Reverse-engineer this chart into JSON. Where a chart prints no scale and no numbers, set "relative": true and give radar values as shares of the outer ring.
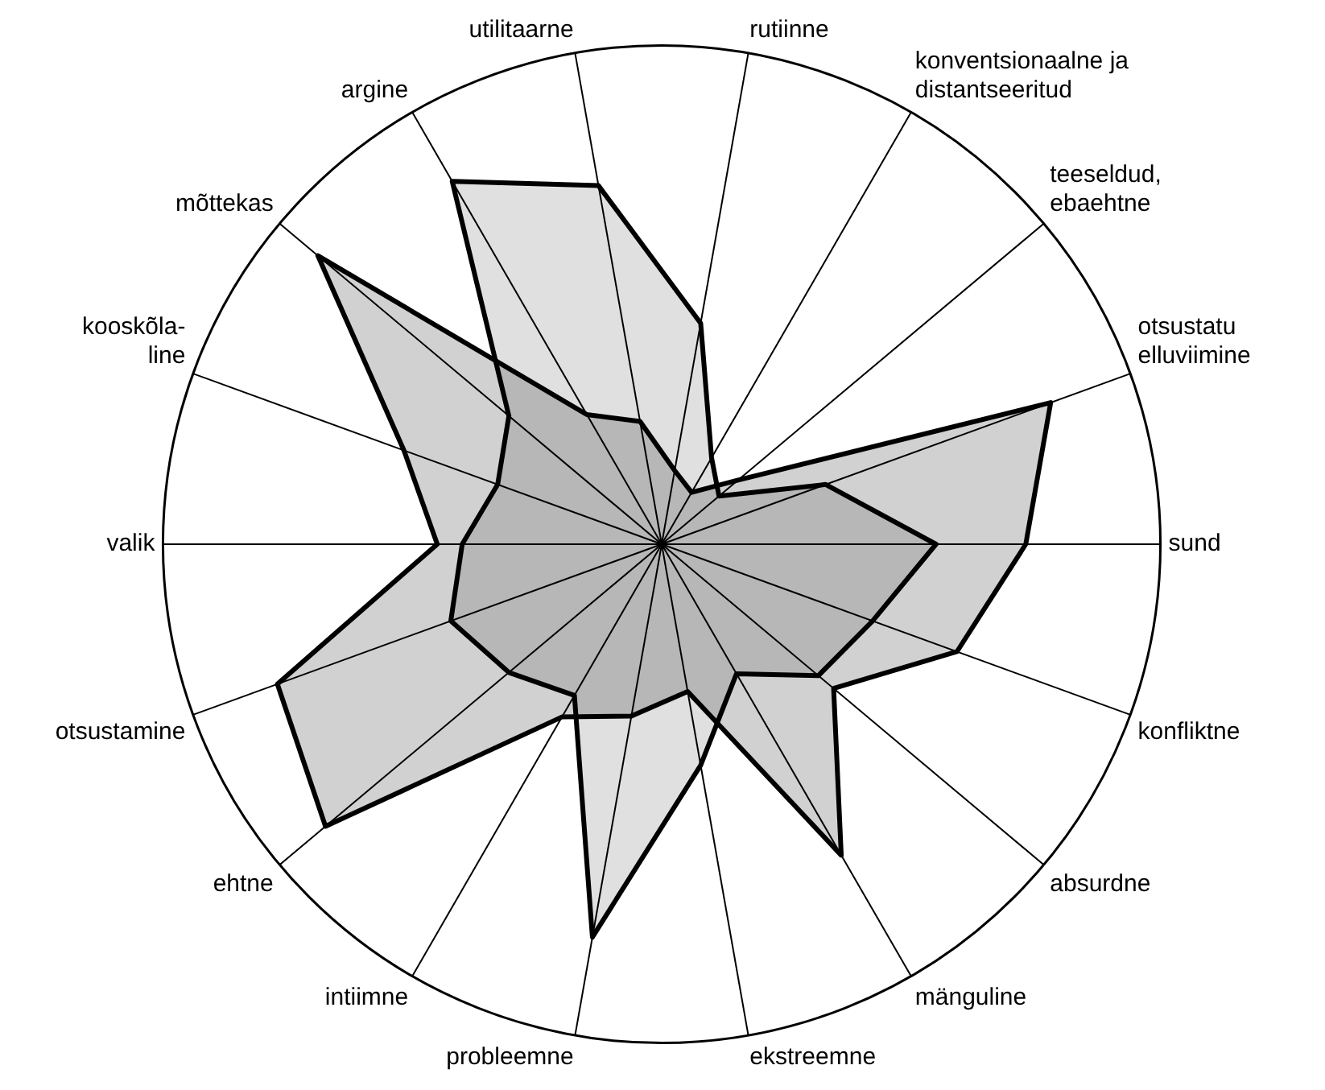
{
  "chart_data": {
    "type": "radar",
    "relative": true,
    "legend": false,
    "categories": [
      "utilitaarne",
      "rutiinne",
      "konventsionaalne ja\ndistantseeritud",
      "teeseldud,\nebaehtne",
      "otsustatu\nelluviimine",
      "sund",
      "konfliktne",
      "absurdne",
      "mänguline",
      "ekstreemne",
      "probleemne",
      "intiimne",
      "ehtne",
      "otsustamine",
      "valik",
      "kooskõla-\nline",
      "mõttekas",
      "argine"
    ],
    "series": [
      {
        "color": "#000000",
        "values": [
          0.25,
          0.15,
          0.12,
          0.2,
          0.83,
          0.73,
          0.63,
          0.45,
          0.72,
          0.3,
          0.35,
          0.4,
          0.88,
          0.82,
          0.45,
          0.55,
          0.9,
          0.3
        ]
      },
      {
        "color": "#000000",
        "values": [
          0.73,
          0.45,
          0.2,
          0.15,
          0.35,
          0.55,
          0.45,
          0.41,
          0.3,
          0.45,
          0.8,
          0.35,
          0.4,
          0.45,
          0.4,
          0.35,
          0.4,
          0.84
        ]
      }
    ]
  }
}
